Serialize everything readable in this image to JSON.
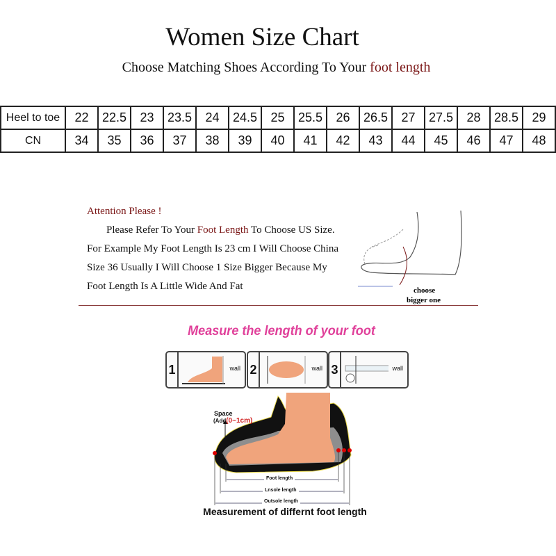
{
  "title": "Women Size Chart",
  "subtitle": {
    "prefix": "Choose Matching Shoes According To Your ",
    "highlight": "foot length"
  },
  "size_table": {
    "rows": [
      {
        "header": "Heel to toe",
        "values": [
          "22",
          "22.5",
          "23",
          "23.5",
          "24",
          "24.5",
          "25",
          "25.5",
          "26",
          "26.5",
          "27",
          "27.5",
          "28",
          "28.5",
          "29"
        ]
      },
      {
        "header": "CN",
        "values": [
          "34",
          "35",
          "36",
          "37",
          "38",
          "39",
          "40",
          "41",
          "42",
          "43",
          "44",
          "45",
          "46",
          "47",
          "48"
        ]
      }
    ]
  },
  "attention": {
    "heading": "Attention Please !",
    "line1_prefix": "Please Refer To Your ",
    "line1_highlight": "Foot Length",
    "line1_suffix": " To Choose US Size.",
    "line2": "For Example My Foot Length Is 23 cm I Will Choose China",
    "line3": "Size 36 Usually I Will Choose 1 Size Bigger Because My",
    "line4": "Foot Length Is A Little Wide And Fat",
    "illustration_label_1": "choose",
    "illustration_label_2": "bigger one"
  },
  "measure": {
    "title": "Measure the length of your foot",
    "steps": [
      {
        "number": "1",
        "wall": "wall"
      },
      {
        "number": "2",
        "wall": "wall"
      },
      {
        "number": "3",
        "wall": "wall"
      }
    ],
    "space_label": "Space",
    "space_add_prefix": "(Add",
    "space_add_value": "(0~1cm)",
    "foot_length": "Foot length",
    "insole_length": "Lnsole length",
    "outsole_length": "Outsole length",
    "caption": "Measurement of differnt foot length"
  },
  "colors": {
    "accent_red": "#7a1616",
    "pink": "#e0409a",
    "skin": "#f0a47c"
  }
}
